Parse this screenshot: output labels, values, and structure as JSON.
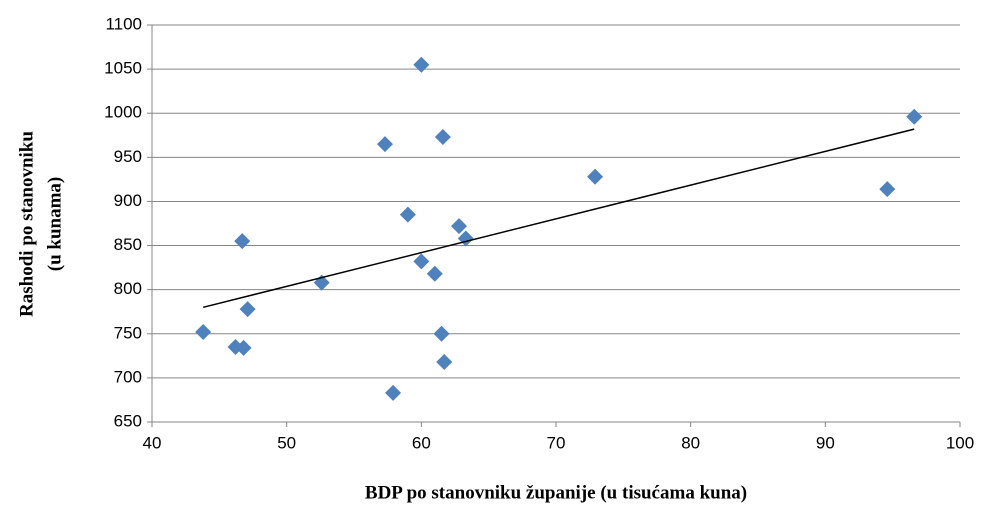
{
  "chart_data": {
    "type": "scatter",
    "x_label": "BDP po stanovniku županije (u tisućama kuna)",
    "y_label": [
      "Rashodi po stanovniku",
      "(u kunama)"
    ],
    "series": [
      {
        "color": "#4f81bd",
        "x": [
          43.8,
          46.2,
          46.8,
          46.7,
          47.1,
          52.6,
          57.3,
          57.9,
          59.0,
          60.0,
          60.0,
          61.0,
          61.5,
          61.6,
          61.7,
          62.8,
          63.3,
          72.9,
          94.6,
          96.6
        ],
        "values": [
          752,
          735,
          734,
          855,
          778,
          808,
          965,
          683,
          885,
          1055,
          832,
          818,
          750,
          973,
          718,
          872,
          858,
          928,
          914,
          996
        ]
      }
    ],
    "trendline": {
      "color": "#000000",
      "x": [
        43.8,
        96.6
      ],
      "y": [
        780,
        982
      ]
    },
    "xlim": [
      40,
      100
    ],
    "xticks": [
      40,
      50,
      60,
      70,
      80,
      90,
      100
    ],
    "ylim": [
      650,
      1100
    ],
    "yticks": [
      650,
      700,
      750,
      800,
      850,
      900,
      950,
      1000,
      1050,
      1100
    ],
    "grid": true
  }
}
